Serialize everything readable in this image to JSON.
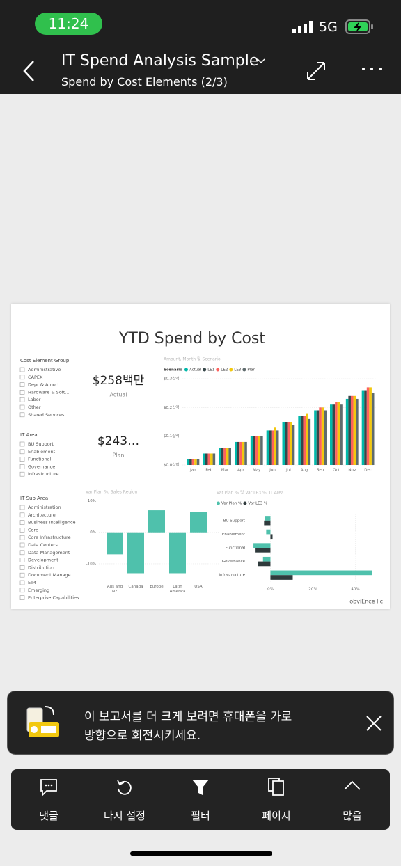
{
  "status_bar": {
    "time": "11:24",
    "network": "5G"
  },
  "header": {
    "title": "IT Spend Analysis Sample",
    "subtitle": "Spend by Cost Elements (2/3)"
  },
  "report": {
    "title": "YTD Spend by Cost",
    "footer": "obviEnce llc",
    "slicers": [
      {
        "title": "Cost Element Group",
        "items": [
          "Administrative",
          "CAPEX",
          "Depr & Amort",
          "Hardware & Soft...",
          "Labor",
          "Other",
          "Shared Services"
        ]
      },
      {
        "title": "IT Area",
        "items": [
          "BU Support",
          "Enablement",
          "Functional",
          "Governance",
          "Infrastructure"
        ]
      },
      {
        "title": "IT Sub Area",
        "items": [
          "Administration",
          "Architecture",
          "Business Intelligence",
          "Core",
          "Core Infrastructure",
          "Data Centers",
          "Data Management",
          "Development",
          "Distribution",
          "Document Manage...",
          "EIM",
          "Emerging",
          "Enterprise Capabilities"
        ]
      }
    ],
    "cards": [
      {
        "value": "$258백만",
        "label": "Actual"
      },
      {
        "value": "$243…",
        "label": "Plan"
      }
    ]
  },
  "chart_data": [
    {
      "type": "bar",
      "title": "Amount, Month 및 Scenario",
      "legend_title": "Scenario",
      "categories": [
        "Jan",
        "Feb",
        "Mar",
        "Apr",
        "May",
        "Jun",
        "Jul",
        "Aug",
        "Sep",
        "Oct",
        "Nov",
        "Dec"
      ],
      "series": [
        {
          "name": "Actual",
          "color": "#01b8aa",
          "values": [
            0.02,
            0.04,
            0.06,
            0.08,
            0.1,
            0.12,
            0.15,
            0.17,
            0.19,
            0.21,
            0.23,
            0.26
          ]
        },
        {
          "name": "LE1",
          "color": "#374649",
          "values": [
            0.02,
            0.04,
            0.06,
            0.08,
            0.1,
            0.12,
            0.15,
            0.17,
            0.19,
            0.21,
            0.24,
            0.26
          ]
        },
        {
          "name": "LE2",
          "color": "#fd625e",
          "values": [
            0.02,
            0.04,
            0.06,
            0.08,
            0.1,
            0.12,
            0.15,
            0.17,
            0.2,
            0.22,
            0.24,
            0.27
          ]
        },
        {
          "name": "LE3",
          "color": "#f2c80f",
          "values": [
            0.02,
            0.04,
            0.06,
            0.08,
            0.1,
            0.13,
            0.15,
            0.18,
            0.2,
            0.22,
            0.24,
            0.27
          ]
        },
        {
          "name": "Plan",
          "color": "#5f6b6d",
          "values": [
            0.02,
            0.04,
            0.06,
            0.08,
            0.1,
            0.12,
            0.14,
            0.16,
            0.19,
            0.21,
            0.23,
            0.25
          ]
        }
      ],
      "ylim": [
        0,
        0.3
      ],
      "yticks": [
        {
          "value": 0,
          "label": "$0.0십억"
        },
        {
          "value": 0.1,
          "label": "$0.1십억"
        },
        {
          "value": 0.2,
          "label": "$0.2십억"
        },
        {
          "value": 0.3,
          "label": "$0.3십억"
        }
      ],
      "grid": true
    },
    {
      "type": "bar",
      "title": "Var Plan %, Sales Region",
      "categories": [
        "Aus and NZ",
        "Canada",
        "Europe",
        "Latin America",
        "USA"
      ],
      "values": [
        -7,
        -13,
        7,
        -13,
        6.5
      ],
      "color": "#4fc1ac",
      "ylim": [
        -14,
        11
      ],
      "yticks": [
        {
          "value": 10,
          "label": "10%"
        },
        {
          "value": 0,
          "label": "0%"
        },
        {
          "value": -10,
          "label": "-10%"
        }
      ],
      "grid": true
    },
    {
      "type": "hbar",
      "title": "Var Plan % 및 Var LE3 %, IT Area",
      "categories": [
        "BU Support",
        "Enablement",
        "Functional",
        "Governance",
        "Infrastructure"
      ],
      "series": [
        {
          "name": "Var Plan %",
          "color": "#4fc1ac",
          "values": [
            -2.5,
            -2,
            -8,
            -3.5,
            48
          ]
        },
        {
          "name": "Var LE3 %",
          "color": "#2f3a3c",
          "values": [
            -3,
            1,
            -7,
            -6,
            10.5
          ]
        }
      ],
      "xlim": [
        -9,
        50
      ],
      "xticks": [
        {
          "value": 0,
          "label": "0%"
        },
        {
          "value": 20,
          "label": "20%"
        },
        {
          "value": 40,
          "label": "40%"
        }
      ],
      "grid": true
    }
  ],
  "toast": {
    "lines": [
      "이 보고서를 더 크게 보려면 휴대폰을 가로",
      "방향으로 회전시키세요."
    ]
  },
  "toolbar": {
    "items": [
      "댓글",
      "다시 설정",
      "필터",
      "페이지",
      "많음"
    ]
  }
}
